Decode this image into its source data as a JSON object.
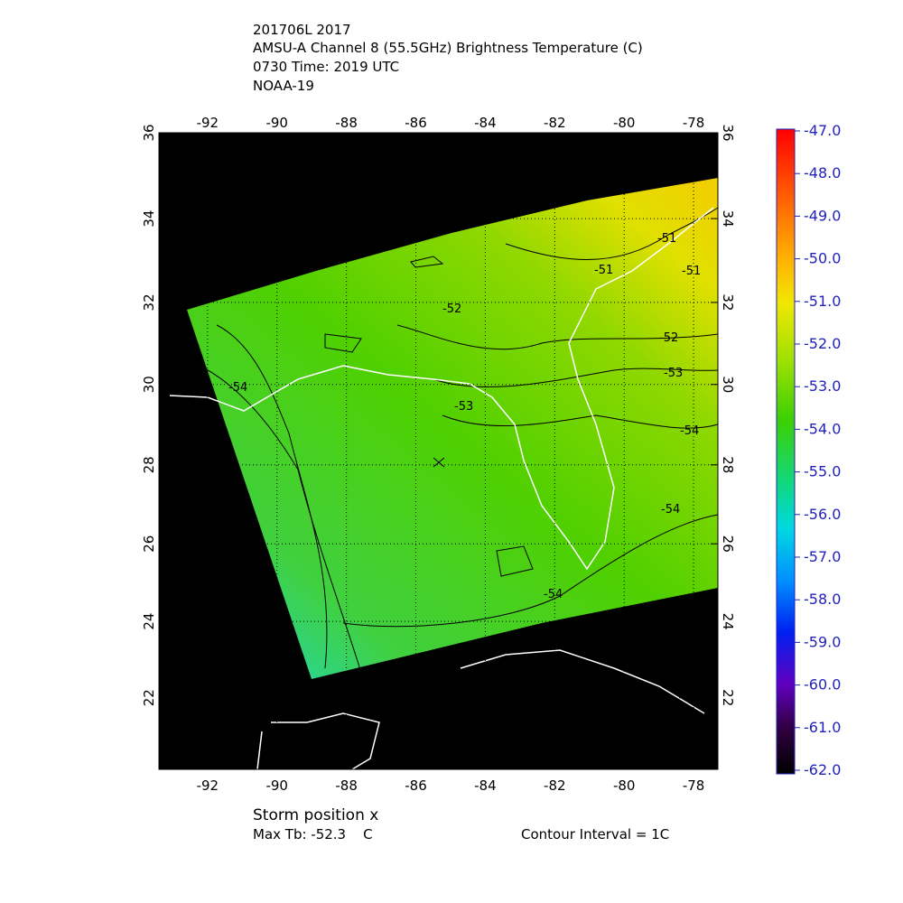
{
  "header": {
    "lines": [
      "201706L 2017",
      "AMSU-A Channel 8 (55.5GHz) Brightness Temperature (C)",
      "0730 Time: 2019 UTC",
      "NOAA-19"
    ]
  },
  "map": {
    "xlim": [
      -93.4,
      -77.3
    ],
    "ylim": [
      20.1,
      36
    ],
    "xticks": [
      -92,
      -90,
      -88,
      -86,
      -84,
      -82,
      -80,
      -78
    ],
    "yticks": [
      22,
      24,
      26,
      28,
      30,
      32,
      34,
      36
    ],
    "grid": true
  },
  "contour_labels": [
    "-51",
    "-51",
    "-51",
    "-52",
    "-52",
    "-53",
    "-53",
    "-54",
    "-54",
    "-54",
    "-54"
  ],
  "colorbar": {
    "clim": [
      -62,
      -47
    ],
    "ticks": [
      {
        "value": -47,
        "label": "-47.0"
      },
      {
        "value": -48,
        "label": "-48.0"
      },
      {
        "value": -49,
        "label": "-49.0"
      },
      {
        "value": -50,
        "label": "-50.0"
      },
      {
        "value": -51,
        "label": "-51.0"
      },
      {
        "value": -52,
        "label": "-52.0"
      },
      {
        "value": -53,
        "label": "-53.0"
      },
      {
        "value": -54,
        "label": "-54.0"
      },
      {
        "value": -55,
        "label": "-55.0"
      },
      {
        "value": -56,
        "label": "-56.0"
      },
      {
        "value": -57,
        "label": "-57.0"
      },
      {
        "value": -58,
        "label": "-58.0"
      },
      {
        "value": -59,
        "label": "-59.0"
      },
      {
        "value": -60,
        "label": "-60.0"
      },
      {
        "value": -61,
        "label": "-61.0"
      },
      {
        "value": -62,
        "label": "-62.0"
      }
    ]
  },
  "footer": {
    "storm": "Storm position x",
    "max_tb": "Max Tb: -52.3    C",
    "interval": "Contour Interval = 1C"
  }
}
